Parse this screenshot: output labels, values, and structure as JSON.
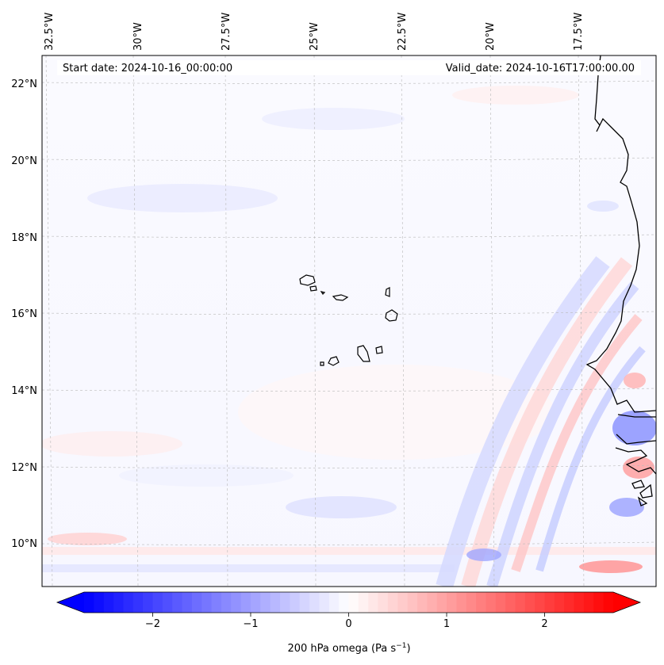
{
  "map": {
    "start_date": "Start date: 2024-10-16_00:00:00",
    "valid_date": "Valid_date: 2024-10-16T17:00:00.00",
    "lon_labels": [
      "32.5°W",
      "30°W",
      "27.5°W",
      "25°W",
      "22.5°W",
      "20°W",
      "17.5°W"
    ],
    "lat_labels": [
      "22°N",
      "20°N",
      "18°N",
      "16°N",
      "14°N",
      "12°N",
      "10°N"
    ],
    "gridlines": true,
    "field": "200 hPa omega",
    "region": "Cape Verde islands and West African coast (Senegal)"
  },
  "colorbar": {
    "label_main": "200 hPa omega (Pa s",
    "label_exp": "−1",
    "label_close": ")",
    "ticks": [
      "−2",
      "−1",
      "0",
      "1",
      "2"
    ],
    "tick_values": [
      -2,
      -1,
      0,
      1,
      2
    ],
    "range": [
      -2.7,
      2.7
    ],
    "colormap": "bwr",
    "extend": "both",
    "low_color": "#0000ff",
    "mid_color": "#ffffff",
    "high_color": "#ff0000"
  }
}
